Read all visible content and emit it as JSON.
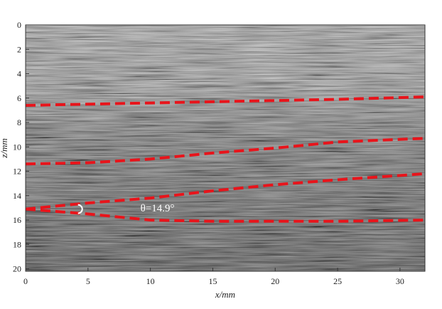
{
  "chart_data": {
    "type": "line",
    "title": "",
    "xlabel": "x/mm",
    "ylabel": "z/mm",
    "xlim": [
      0,
      32
    ],
    "ylim": [
      20.2,
      0
    ],
    "y_inverted": true,
    "xticks": [
      0,
      5,
      10,
      15,
      20,
      25,
      30
    ],
    "yticks": [
      0,
      2,
      4,
      6,
      8,
      10,
      12,
      14,
      16,
      18,
      20
    ],
    "background": "grayscale ultrasound B-scan image",
    "series": [
      {
        "x": [
          0,
          5,
          10,
          15,
          20,
          25,
          32
        ],
        "y": [
          6.6,
          6.5,
          6.4,
          6.3,
          6.2,
          6.1,
          5.9
        ]
      },
      {
        "x": [
          0,
          5,
          10,
          15,
          20,
          25,
          32
        ],
        "y": [
          11.4,
          11.3,
          11.0,
          10.5,
          10.1,
          9.6,
          9.3
        ]
      },
      {
        "x": [
          0,
          5,
          10,
          15,
          20,
          25,
          32
        ],
        "y": [
          15.1,
          14.6,
          14.2,
          13.6,
          13.1,
          12.7,
          12.2
        ]
      },
      {
        "x": [
          0,
          5,
          10,
          15,
          20,
          25,
          32
        ],
        "y": [
          15.1,
          15.5,
          16.0,
          16.1,
          16.1,
          16.1,
          16.0
        ]
      }
    ],
    "line_color": "#e8141b",
    "line_style": "dashed",
    "annotations": [
      {
        "text": "θ=14.9°",
        "x": 9.2,
        "y": 15.3
      }
    ]
  }
}
